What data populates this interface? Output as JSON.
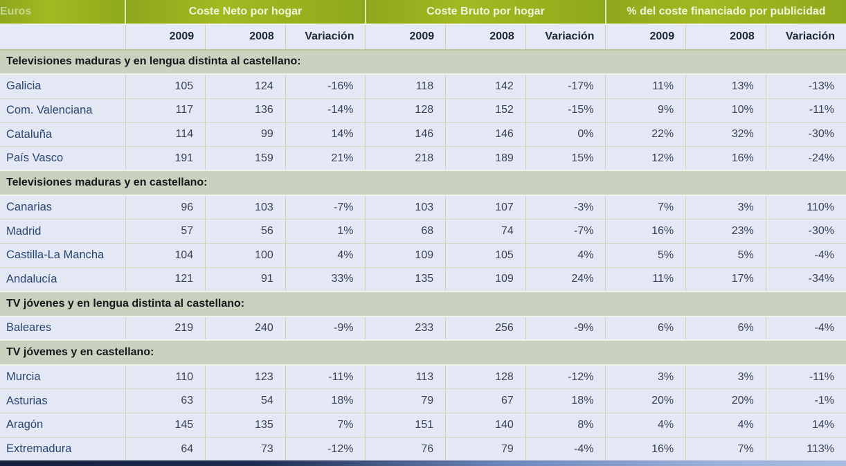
{
  "table": {
    "unit_label": "Euros",
    "col_groups": [
      {
        "label": "Coste Neto por hogar"
      },
      {
        "label": "Coste Bruto por hogar"
      },
      {
        "label": "% del coste financiado por publicidad"
      }
    ],
    "sub_headers": [
      "2009",
      "2008",
      "Variación",
      "2009",
      "2008",
      "Variación",
      "2009",
      "2008",
      "Variación"
    ],
    "sections": [
      {
        "title": "Televisiones maduras y en lengua distinta al castellano:",
        "rows": [
          {
            "name": "Galicia",
            "values": [
              "105",
              "124",
              "-16%",
              "118",
              "142",
              "-17%",
              "11%",
              "13%",
              "-13%"
            ]
          },
          {
            "name": "Com. Valenciana",
            "values": [
              "117",
              "136",
              "-14%",
              "128",
              "152",
              "-15%",
              "9%",
              "10%",
              "-11%"
            ]
          },
          {
            "name": "Cataluña",
            "values": [
              "114",
              "99",
              "14%",
              "146",
              "146",
              "0%",
              "22%",
              "32%",
              "-30%"
            ]
          },
          {
            "name": "País Vasco",
            "values": [
              "191",
              "159",
              "21%",
              "218",
              "189",
              "15%",
              "12%",
              "16%",
              "-24%"
            ]
          }
        ]
      },
      {
        "title": "Televisiones maduras y en castellano:",
        "rows": [
          {
            "name": "Canarias",
            "values": [
              "96",
              "103",
              "-7%",
              "103",
              "107",
              "-3%",
              "7%",
              "3%",
              "110%"
            ]
          },
          {
            "name": "Madrid",
            "values": [
              "57",
              "56",
              "1%",
              "68",
              "74",
              "-7%",
              "16%",
              "23%",
              "-30%"
            ]
          },
          {
            "name": "Castilla-La Mancha",
            "values": [
              "104",
              "100",
              "4%",
              "109",
              "105",
              "4%",
              "5%",
              "5%",
              "-4%"
            ]
          },
          {
            "name": "Andalucía",
            "values": [
              "121",
              "91",
              "33%",
              "135",
              "109",
              "24%",
              "11%",
              "17%",
              "-34%"
            ]
          }
        ]
      },
      {
        "title": "TV jóvenes y en lengua distinta al castellano:",
        "rows": [
          {
            "name": "Baleares",
            "values": [
              "219",
              "240",
              "-9%",
              "233",
              "256",
              "-9%",
              "6%",
              "6%",
              "-4%"
            ]
          }
        ]
      },
      {
        "title": "TV jóvemes y en castellano:",
        "rows": [
          {
            "name": "Murcia",
            "values": [
              "110",
              "123",
              "-11%",
              "113",
              "128",
              "-12%",
              "3%",
              "3%",
              "-11%"
            ]
          },
          {
            "name": "Asturias",
            "values": [
              "63",
              "54",
              "18%",
              "79",
              "67",
              "18%",
              "20%",
              "20%",
              "-1%"
            ]
          },
          {
            "name": "Aragón",
            "values": [
              "145",
              "135",
              "7%",
              "151",
              "140",
              "8%",
              "4%",
              "4%",
              "14%"
            ]
          },
          {
            "name": "Extremadura",
            "values": [
              "64",
              "73",
              "-12%",
              "76",
              "79",
              "-4%",
              "16%",
              "7%",
              "113%"
            ]
          }
        ]
      }
    ],
    "colors": {
      "header_green": "#9cb31e",
      "header_text": "#eff3da",
      "row_bg": "#e4e7f4",
      "section_bg": "#cbd1bf",
      "region_text": "#29466e",
      "value_text": "#39425a"
    }
  }
}
